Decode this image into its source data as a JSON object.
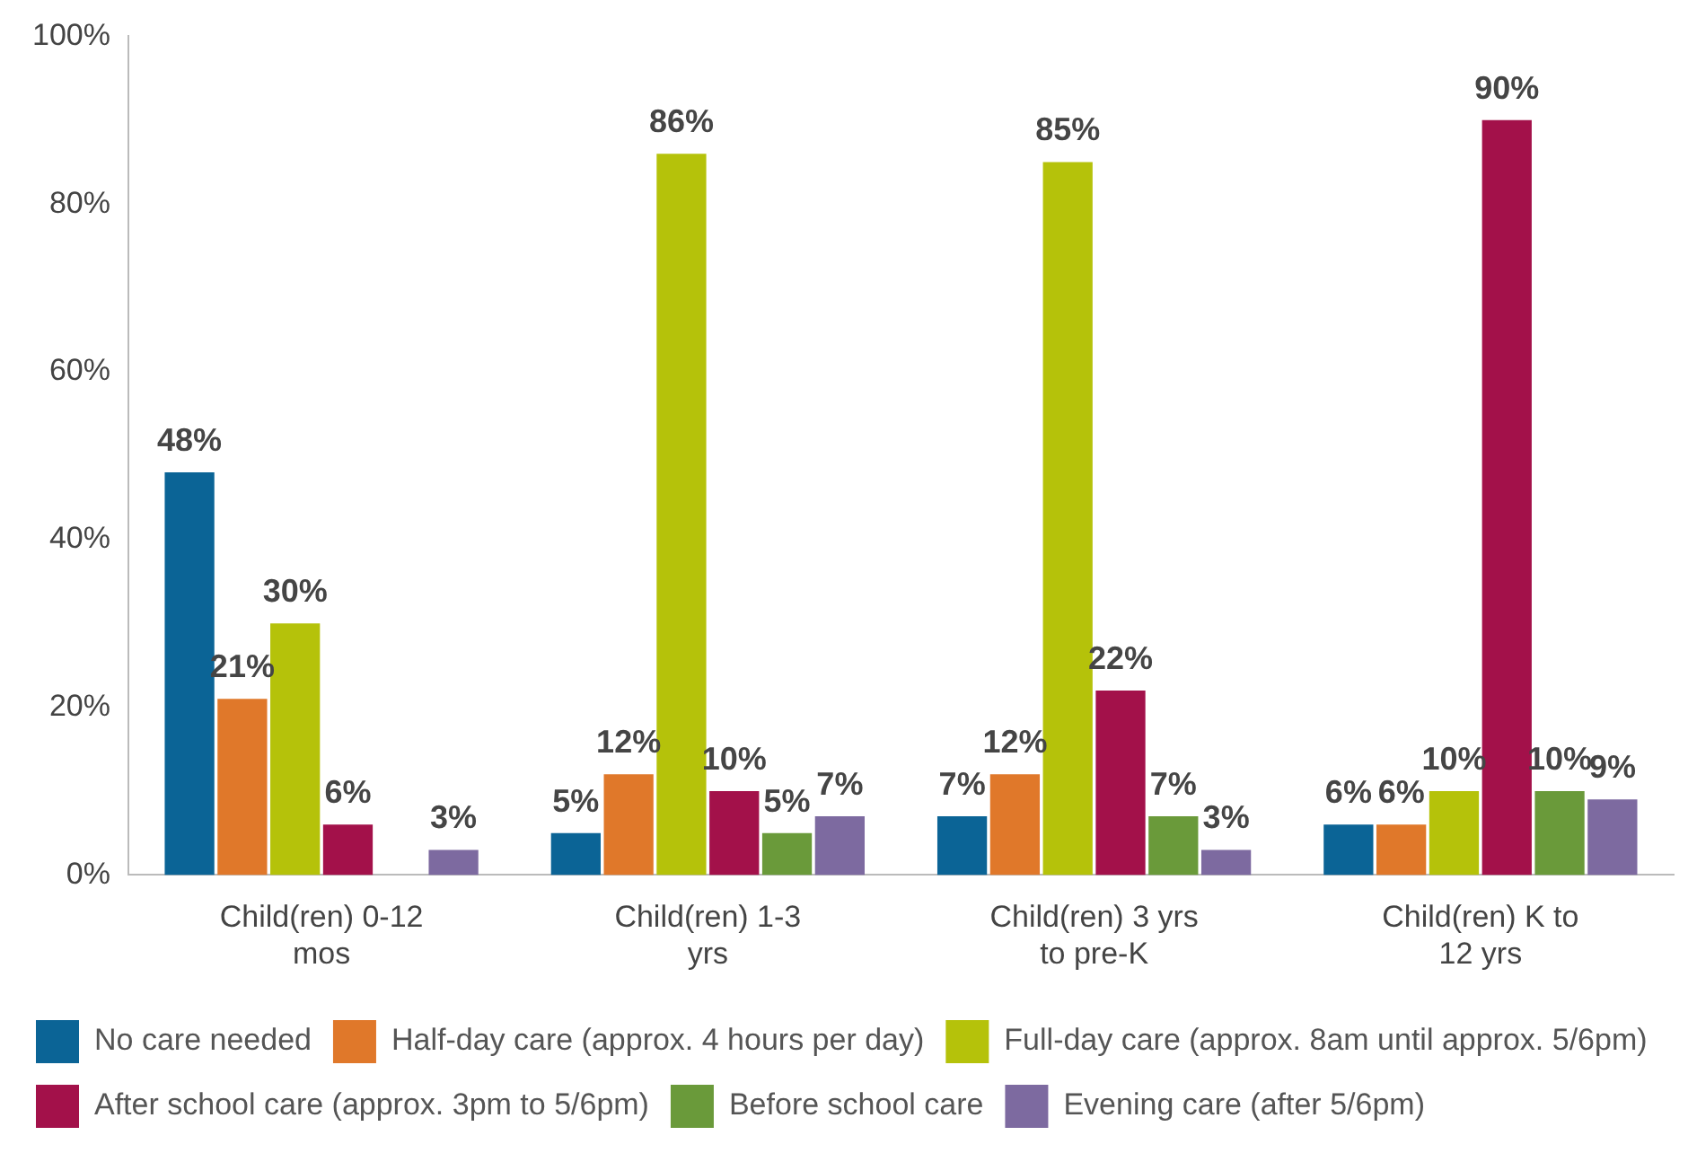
{
  "chart_data": {
    "type": "bar",
    "categories": [
      "Child(ren) 0-12 mos",
      "Child(ren) 1-3 yrs",
      "Child(ren) 3 yrs to pre-K",
      "Child(ren) K to 12 yrs"
    ],
    "series": [
      {
        "name": "No care needed",
        "color": "#0b6496",
        "values": [
          48,
          5,
          7,
          6
        ],
        "value_labels": [
          "48%",
          "5%",
          "7%",
          "6%"
        ]
      },
      {
        "name": "Half-day care (approx. 4 hours per day)",
        "color": "#e0782a",
        "values": [
          21,
          12,
          12,
          6
        ],
        "value_labels": [
          "21%",
          "12%",
          "12%",
          "6%"
        ]
      },
      {
        "name": "Full-day care (approx. 8am until approx. 5/6pm)",
        "color": "#b5c20a",
        "values": [
          30,
          86,
          85,
          10
        ],
        "value_labels": [
          "30%",
          "86%",
          "85%",
          "10%"
        ]
      },
      {
        "name": "After school care (approx. 3pm to 5/6pm)",
        "color": "#a3114a",
        "values": [
          6,
          10,
          22,
          90
        ],
        "value_labels": [
          "6%",
          "10%",
          "22%",
          "90%"
        ]
      },
      {
        "name": "Before school care",
        "color": "#6a9a3a",
        "values": [
          null,
          5,
          7,
          10
        ],
        "value_labels": [
          null,
          "5%",
          "7%",
          "10%"
        ]
      },
      {
        "name": "Evening care (after 5/6pm)",
        "color": "#7d6aa0",
        "values": [
          3,
          7,
          3,
          9
        ],
        "value_labels": [
          "3%",
          "7%",
          "3%",
          "9%"
        ]
      }
    ],
    "ylim": [
      0,
      100
    ],
    "yticks": [
      {
        "value": 0,
        "label": "0%"
      },
      {
        "value": 20,
        "label": "20%"
      },
      {
        "value": 40,
        "label": "40%"
      },
      {
        "value": 60,
        "label": "60%"
      },
      {
        "value": 80,
        "label": "80%"
      },
      {
        "value": 100,
        "label": "100%"
      }
    ],
    "grid": false,
    "legend": "bottom"
  }
}
